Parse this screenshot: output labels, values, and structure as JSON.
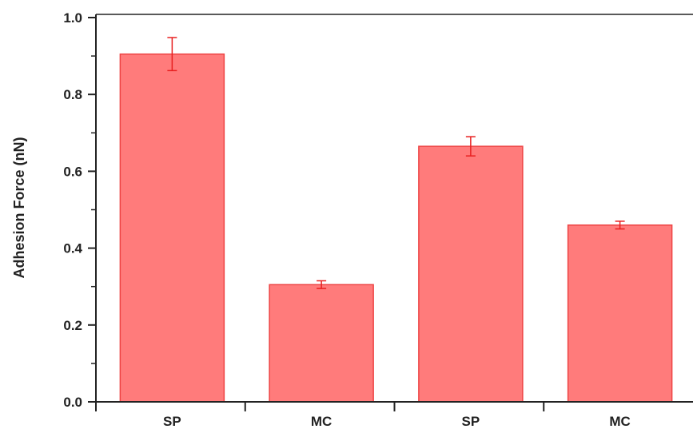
{
  "chart_data": {
    "type": "bar",
    "categories": [
      "SP",
      "MC",
      "SP",
      "MC"
    ],
    "values": [
      0.905,
      0.305,
      0.665,
      0.46
    ],
    "errors": [
      0.043,
      0.01,
      0.025,
      0.01
    ],
    "title": "",
    "xlabel": "",
    "ylabel": "Adhesion Force (nN)",
    "ylim": [
      0,
      1.0
    ],
    "yticks": [
      "0.0",
      "0.2",
      "0.4",
      "0.6",
      "0.8",
      "1.0"
    ],
    "grid": false,
    "bar_color": "#ff7b7b",
    "bar_edge_color": "#ee4444",
    "error_color": "#e82020"
  }
}
